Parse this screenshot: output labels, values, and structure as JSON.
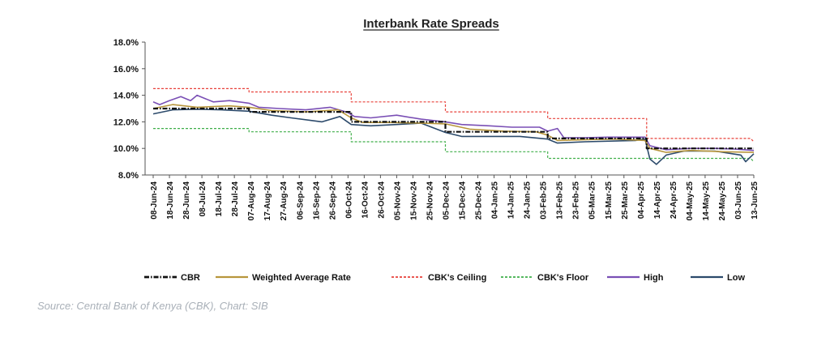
{
  "chart_data": {
    "type": "line",
    "title": "Interbank Rate Spreads",
    "ylim": [
      8.0,
      18.0
    ],
    "y_ticks": [
      "18.0%",
      "16.0%",
      "14.0%",
      "12.0%",
      "10.0%",
      "8.0%"
    ],
    "y_tick_values": [
      18,
      16,
      14,
      12,
      10,
      8
    ],
    "x_tick_labels": [
      "08-Jun-24",
      "18-Jun-24",
      "28-Jun-24",
      "08-Jul-24",
      "18-Jul-24",
      "28-Jul-24",
      "07-Aug-24",
      "17-Aug-24",
      "27-Aug-24",
      "06-Sep-24",
      "16-Sep-24",
      "26-Sep-24",
      "06-Oct-24",
      "16-Oct-24",
      "26-Oct-24",
      "05-Nov-24",
      "15-Nov-24",
      "25-Nov-24",
      "05-Dec-24",
      "15-Dec-24",
      "25-Dec-24",
      "04-Jan-25",
      "14-Jan-25",
      "24-Jan-25",
      "03-Feb-25",
      "13-Feb-25",
      "23-Feb-25",
      "05-Mar-25",
      "15-Mar-25",
      "25-Mar-25",
      "04-Apr-25",
      "14-Apr-25",
      "24-Apr-25",
      "04-May-25",
      "14-May-25",
      "24-May-25",
      "03-Jun-25",
      "13-Jun-25"
    ],
    "grid": false,
    "legend_position": "bottom",
    "series": [
      {
        "name": "CBR",
        "color": "#111111",
        "style": "dash-dot",
        "x": [
          "08-Jun-24",
          "06-Aug-24",
          "06-Aug-24",
          "08-Oct-24",
          "08-Oct-24",
          "05-Dec-24",
          "05-Dec-24",
          "06-Feb-25",
          "06-Feb-25",
          "08-Apr-25",
          "08-Apr-25",
          "13-Jun-25"
        ],
        "y": [
          13.0,
          13.0,
          12.75,
          12.75,
          12.0,
          12.0,
          11.25,
          11.25,
          10.75,
          10.75,
          10.0,
          10.0
        ]
      },
      {
        "name": "Weighted Average Rate",
        "color": "#b8963c",
        "style": "solid",
        "x": [
          "08-Jun-24",
          "20-Jun-24",
          "05-Jul-24",
          "25-Jul-24",
          "06-Aug-24",
          "20-Aug-24",
          "10-Sep-24",
          "30-Sep-24",
          "08-Oct-24",
          "15-Oct-24",
          "01-Nov-24",
          "20-Nov-24",
          "05-Dec-24",
          "20-Dec-24",
          "10-Jan-25",
          "30-Jan-25",
          "06-Feb-25",
          "12-Feb-25",
          "01-Mar-25",
          "20-Mar-25",
          "07-Apr-25",
          "10-Apr-25",
          "20-Apr-25",
          "05-May-25",
          "25-May-25",
          "13-Jun-25"
        ],
        "y": [
          13.0,
          13.3,
          13.1,
          13.2,
          13.1,
          12.85,
          12.75,
          12.9,
          12.3,
          11.95,
          11.95,
          11.9,
          11.85,
          11.45,
          11.3,
          11.25,
          11.0,
          10.6,
          10.65,
          10.7,
          10.6,
          10.0,
          9.7,
          9.85,
          9.75,
          9.7
        ]
      },
      {
        "name": "CBK's Ceiling",
        "color": "#e8413a",
        "style": "dashed",
        "x": [
          "08-Jun-24",
          "06-Aug-24",
          "06-Aug-24",
          "08-Oct-24",
          "08-Oct-24",
          "05-Dec-24",
          "05-Dec-24",
          "06-Feb-25",
          "06-Feb-25",
          "08-Apr-25",
          "08-Apr-25",
          "11-Jun-25",
          "13-Jun-25"
        ],
        "y": [
          14.5,
          14.5,
          14.25,
          14.25,
          13.5,
          13.5,
          12.75,
          12.75,
          12.25,
          12.25,
          10.75,
          10.75,
          10.5
        ]
      },
      {
        "name": "CBK's Floor",
        "color": "#3fae49",
        "style": "dashed",
        "x": [
          "08-Jun-24",
          "06-Aug-24",
          "06-Aug-24",
          "08-Oct-24",
          "08-Oct-24",
          "05-Dec-24",
          "05-Dec-24",
          "06-Feb-25",
          "06-Feb-25",
          "08-Apr-25",
          "08-Apr-25",
          "11-Jun-25",
          "13-Jun-25"
        ],
        "y": [
          11.5,
          11.5,
          11.25,
          11.25,
          10.5,
          10.5,
          9.75,
          9.75,
          9.25,
          9.25,
          9.25,
          9.25,
          9.0
        ]
      },
      {
        "name": "High",
        "color": "#7a4fb5",
        "style": "solid",
        "x": [
          "08-Jun-24",
          "12-Jun-24",
          "18-Jun-24",
          "25-Jun-24",
          "01-Jul-24",
          "05-Jul-24",
          "15-Jul-24",
          "25-Jul-24",
          "06-Aug-24",
          "12-Aug-24",
          "25-Aug-24",
          "10-Sep-24",
          "25-Sep-24",
          "06-Oct-24",
          "10-Oct-24",
          "20-Oct-24",
          "05-Nov-24",
          "20-Nov-24",
          "05-Dec-24",
          "15-Dec-24",
          "01-Jan-25",
          "15-Jan-25",
          "01-Feb-25",
          "06-Feb-25",
          "12-Feb-25",
          "16-Feb-25",
          "01-Mar-25",
          "15-Mar-25",
          "07-Apr-25",
          "10-Apr-25",
          "20-Apr-25",
          "05-May-25",
          "20-May-25",
          "01-Jun-25",
          "13-Jun-25"
        ],
        "y": [
          13.5,
          13.3,
          13.6,
          13.9,
          13.6,
          14.0,
          13.5,
          13.6,
          13.4,
          13.1,
          13.0,
          12.9,
          13.1,
          12.7,
          12.4,
          12.3,
          12.5,
          12.2,
          12.0,
          11.8,
          11.7,
          11.6,
          11.6,
          11.3,
          11.5,
          10.8,
          10.8,
          10.85,
          10.85,
          10.2,
          9.9,
          10.0,
          10.0,
          9.95,
          9.85
        ]
      },
      {
        "name": "Low",
        "color": "#2c4a6b",
        "style": "solid",
        "x": [
          "08-Jun-24",
          "20-Jun-24",
          "05-Jul-24",
          "20-Jul-24",
          "06-Aug-24",
          "20-Aug-24",
          "01-Sep-24",
          "20-Sep-24",
          "01-Oct-24",
          "08-Oct-24",
          "20-Oct-24",
          "05-Nov-24",
          "20-Nov-24",
          "05-Dec-24",
          "15-Dec-24",
          "01-Jan-25",
          "20-Jan-25",
          "06-Feb-25",
          "12-Feb-25",
          "01-Mar-25",
          "01-Apr-25",
          "07-Apr-25",
          "10-Apr-25",
          "14-Apr-25",
          "20-Apr-25",
          "01-May-25",
          "20-May-25",
          "05-Jun-25",
          "08-Jun-25",
          "13-Jun-25"
        ],
        "y": [
          12.6,
          12.9,
          12.95,
          12.9,
          12.8,
          12.5,
          12.3,
          12.0,
          12.4,
          11.8,
          11.7,
          11.8,
          11.9,
          11.2,
          10.9,
          10.9,
          10.9,
          10.7,
          10.4,
          10.5,
          10.6,
          10.7,
          9.2,
          8.8,
          9.5,
          9.8,
          9.8,
          9.5,
          9.0,
          9.6
        ]
      }
    ]
  },
  "source": "Source: Central Bank of Kenya (CBK), Chart: SIB"
}
